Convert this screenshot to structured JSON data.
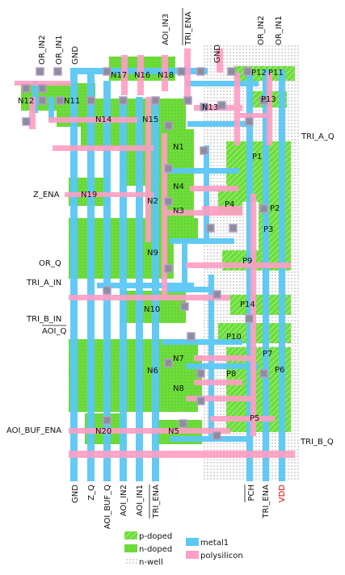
{
  "pins_top": [
    {
      "id": "top-or-in2",
      "label": "OR_IN2",
      "overline": false
    },
    {
      "id": "top-or-in1",
      "label": "OR_IN1",
      "overline": false
    },
    {
      "id": "top-gnd",
      "label": "GND",
      "overline": false
    },
    {
      "id": "top-aoi-in3",
      "label": "AOI_IN3",
      "overline": false
    },
    {
      "id": "top-tri-ena",
      "label": "TRI_ENA",
      "overline": true
    },
    {
      "id": "top-gnd2",
      "label": "GND",
      "overline": false
    },
    {
      "id": "top-or-in2-r",
      "label": "OR_IN2",
      "overline": false
    },
    {
      "id": "top-or-in1-r",
      "label": "OR_IN1",
      "overline": false
    }
  ],
  "pins_bottom": [
    {
      "id": "bot-gnd",
      "label": "GND",
      "overline": false,
      "red": false
    },
    {
      "id": "bot-z-q",
      "label": "Z_Q",
      "overline": false,
      "red": false
    },
    {
      "id": "bot-aoi-buf-q",
      "label": "AOI_BUF_Q",
      "overline": false,
      "red": false
    },
    {
      "id": "bot-aoi-in2",
      "label": "AOI_IN2",
      "overline": false,
      "red": false
    },
    {
      "id": "bot-aoi-in1",
      "label": "AOI_IN1",
      "overline": false,
      "red": false
    },
    {
      "id": "bot-tri-ena",
      "label": "TRI_ENA",
      "overline": true,
      "red": false
    },
    {
      "id": "bot-pch",
      "label": "PCH",
      "overline": true,
      "red": false
    },
    {
      "id": "bot-tri-ena2",
      "label": "TRI_ENA",
      "overline": false,
      "red": false
    },
    {
      "id": "bot-vdd",
      "label": "VDD",
      "overline": false,
      "red": true
    }
  ],
  "pins_left": [
    {
      "id": "left-z-ena",
      "label": "Z_ENA",
      "overline": false
    },
    {
      "id": "left-or-q",
      "label": "OR_Q",
      "overline": false
    },
    {
      "id": "left-tri-a-in",
      "label": "TRI_A_IN",
      "overline": false
    },
    {
      "id": "left-tri-b-in",
      "label": "TRI_B_IN",
      "overline": false
    },
    {
      "id": "left-aoi-q",
      "label": "AOI_Q",
      "overline": true
    },
    {
      "id": "left-aoi-buf-ena",
      "label": "AOI_BUF_ENA",
      "overline": false
    }
  ],
  "pins_right": [
    {
      "id": "right-tri-a-q",
      "label": "TRI_A_Q",
      "overline": false
    },
    {
      "id": "right-tri-b-q",
      "label": "TRI_B_Q",
      "overline": false
    }
  ],
  "transistors_n": [
    "N17",
    "N16",
    "N18",
    "N12",
    "N11",
    "N13",
    "N14",
    "N15",
    "N1",
    "N4",
    "N2",
    "N3",
    "N19",
    "N9",
    "N10",
    "N7",
    "N6",
    "N8",
    "N20",
    "N5"
  ],
  "transistors_p": [
    "P12",
    "P11",
    "P13",
    "P1",
    "P4",
    "P2",
    "P3",
    "P9",
    "P14",
    "P10",
    "P7",
    "P8",
    "P6",
    "P5"
  ],
  "legend": [
    {
      "id": "legend-p-doped",
      "label": "p-doped"
    },
    {
      "id": "legend-n-doped",
      "label": "n-doped"
    },
    {
      "id": "legend-n-well",
      "label": "n-well"
    },
    {
      "id": "legend-metal1",
      "label": "metal1"
    },
    {
      "id": "legend-polysilicon",
      "label": "polysilicon"
    }
  ],
  "colors": {
    "metal1": "#5bc8f5",
    "polysilicon": "#ff9ec4",
    "n_doped": "#6ddd3a",
    "p_doped": "#6ddd3a",
    "contact": "#8a8f99",
    "nwell_dot": "#777777",
    "vdd_label": "#e00000"
  }
}
